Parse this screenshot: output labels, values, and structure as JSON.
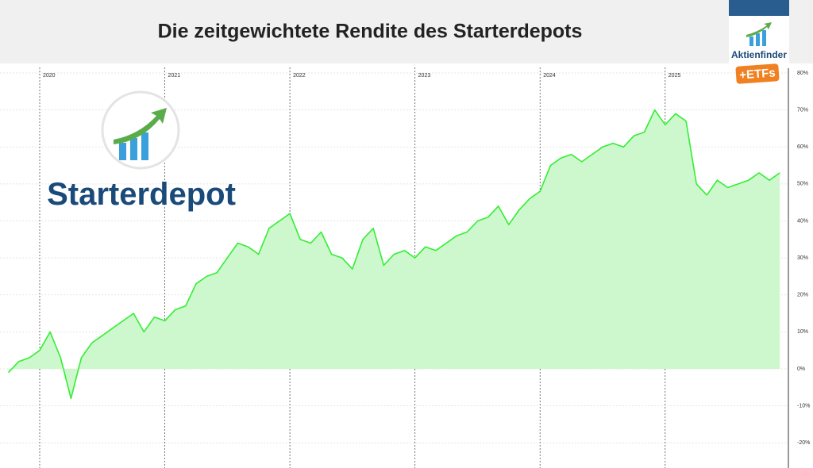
{
  "chart_data": {
    "type": "line",
    "title": "Die zeitgewichtete Rendite des Starterdepots",
    "categories": [
      null,
      null,
      null,
      "2020",
      null,
      null,
      null,
      null,
      null,
      null,
      null,
      null,
      null,
      null,
      null,
      "2021",
      null,
      null,
      null,
      null,
      null,
      null,
      null,
      null,
      null,
      null,
      null,
      "2022",
      null,
      null,
      null,
      null,
      null,
      null,
      null,
      null,
      null,
      null,
      null,
      "2023",
      null,
      null,
      null,
      null,
      null,
      null,
      null,
      null,
      null,
      null,
      null,
      "2024",
      null,
      null,
      null,
      null,
      null,
      null,
      null,
      null,
      null,
      null,
      null,
      "2025",
      null,
      null,
      null,
      null,
      null,
      null,
      null,
      null,
      null,
      null,
      null
    ],
    "values": [
      -1,
      2,
      3,
      5,
      10,
      3,
      -8,
      3,
      7,
      9,
      11,
      13,
      15,
      10,
      14,
      13,
      16,
      17,
      23,
      25,
      26,
      30,
      34,
      33,
      31,
      38,
      40,
      42,
      35,
      34,
      37,
      31,
      30,
      27,
      35,
      38,
      28,
      31,
      32,
      30,
      33,
      32,
      34,
      36,
      37,
      40,
      41,
      44,
      39,
      43,
      46,
      48,
      55,
      57,
      58,
      56,
      58,
      60,
      61,
      60,
      63,
      64,
      70,
      66,
      69,
      67,
      50,
      47,
      51,
      49,
      50,
      51,
      53,
      51,
      53
    ],
    "color": "#33ee33",
    "fill": "#cdf7cd",
    "ylim": [
      -26.8,
      81.5
    ],
    "yticks": [
      {
        "value": -20,
        "label": "-20%"
      },
      {
        "value": -10,
        "label": "-10%"
      },
      {
        "value": 0,
        "label": "0%"
      },
      {
        "value": 10,
        "label": "10%"
      },
      {
        "value": 20,
        "label": "20%"
      },
      {
        "value": 30,
        "label": "30%"
      },
      {
        "value": 40,
        "label": "40%"
      },
      {
        "value": 50,
        "label": "50%"
      },
      {
        "value": 60,
        "label": "60%"
      },
      {
        "value": 70,
        "label": "70%"
      },
      {
        "value": 80,
        "label": "80%"
      }
    ],
    "grid": true
  },
  "logos": {
    "starterdepot": "Starterdepot",
    "aktienfinder": "Aktienfinder",
    "etfs": "+ETFs"
  }
}
